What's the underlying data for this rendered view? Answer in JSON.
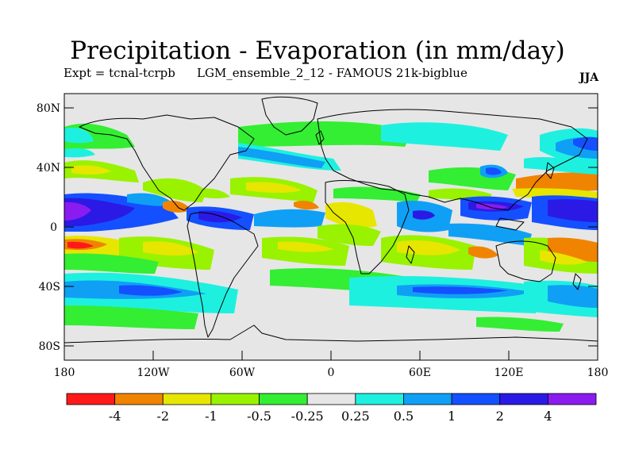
{
  "title": "Precipitation - Evaporation (in mm/day)",
  "subtitle_left": "Expt = tcnal-tcrpb",
  "subtitle_mid": "LGM_ensemble_2_12 - FAMOUS 21k-bigblue",
  "season": "JJA",
  "map": {
    "lat_labels": [
      "80N",
      "40N",
      "0",
      "40S",
      "80S"
    ],
    "lon_labels": [
      "180",
      "120W",
      "60W",
      "0",
      "60E",
      "120E",
      "180"
    ]
  },
  "colorbar": {
    "colors": [
      "#ff1a1a",
      "#f08400",
      "#e6e600",
      "#99f200",
      "#33ee33",
      "#e6e6e6",
      "#1ef0e0",
      "#0fa0f5",
      "#1450ff",
      "#2b1ae6",
      "#8a1cf0"
    ],
    "labels": [
      "-4",
      "-2",
      "-1",
      "-0.5",
      "-0.25",
      "0.25",
      "0.5",
      "1",
      "2",
      "4"
    ]
  },
  "colors": {
    "land_outline": "#000000",
    "background": "#e6e6e6"
  }
}
